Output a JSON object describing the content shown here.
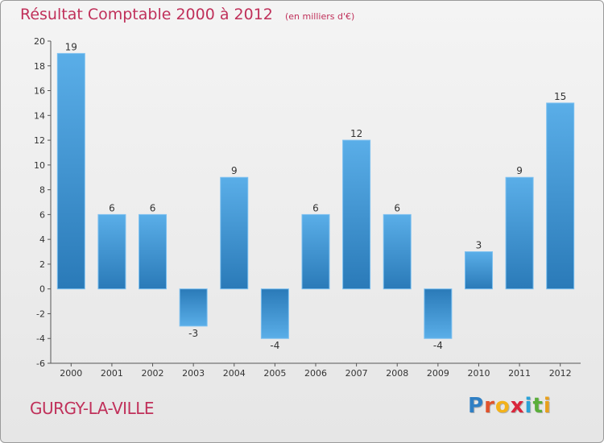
{
  "title": "Résultat Comptable 2000 à 2012",
  "unit_note": "(en milliers d'€)",
  "city": "GURGY-LA-VILLE",
  "logo": {
    "letters": [
      "P",
      "r",
      "o",
      "x",
      "i",
      "t",
      "i"
    ],
    "colors": [
      "#2f7fc4",
      "#e0522c",
      "#f3b21a",
      "#d9263c",
      "#2aa2d8",
      "#5aae3a",
      "#e8a01c"
    ]
  },
  "chart_data": {
    "type": "bar",
    "categories": [
      "2000",
      "2001",
      "2002",
      "2003",
      "2004",
      "2005",
      "2006",
      "2007",
      "2008",
      "2009",
      "2010",
      "2011",
      "2012"
    ],
    "values": [
      19,
      6,
      6,
      -3,
      9,
      -4,
      6,
      12,
      6,
      -4,
      3,
      9,
      15
    ],
    "title": "Résultat Comptable 2000 à 2012",
    "ylim": [
      -6,
      20
    ],
    "yticks": [
      -6,
      -4,
      -2,
      0,
      2,
      4,
      6,
      8,
      10,
      12,
      14,
      16,
      18,
      20
    ],
    "grid": false,
    "bar_color_light": "#5aaee8",
    "bar_color_dark": "#2a7ab8"
  }
}
